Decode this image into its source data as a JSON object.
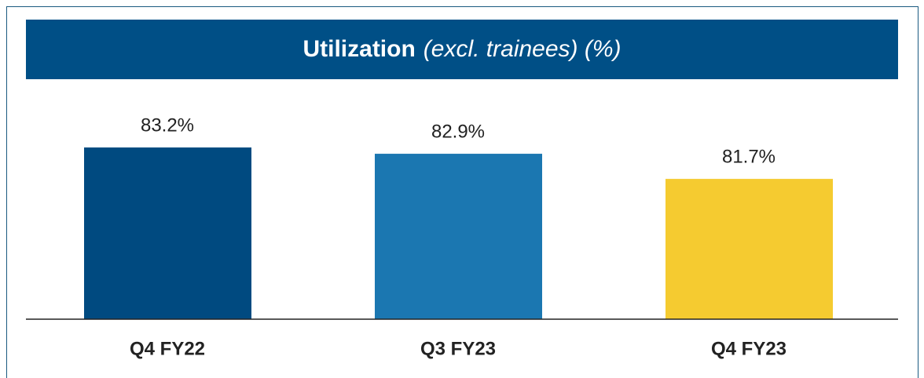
{
  "chart_data": {
    "type": "bar",
    "title": "Utilization",
    "subtitle": "(excl. trainees) (%)",
    "categories": [
      "Q4 FY22",
      "Q3 FY23",
      "Q4 FY23"
    ],
    "values": [
      83.2,
      82.9,
      81.7
    ],
    "value_labels": [
      "83.2%",
      "82.9%",
      "81.7%"
    ],
    "colors": [
      "#004a80",
      "#1b77b1",
      "#f5cb30"
    ],
    "ylim": [
      75,
      85
    ]
  }
}
